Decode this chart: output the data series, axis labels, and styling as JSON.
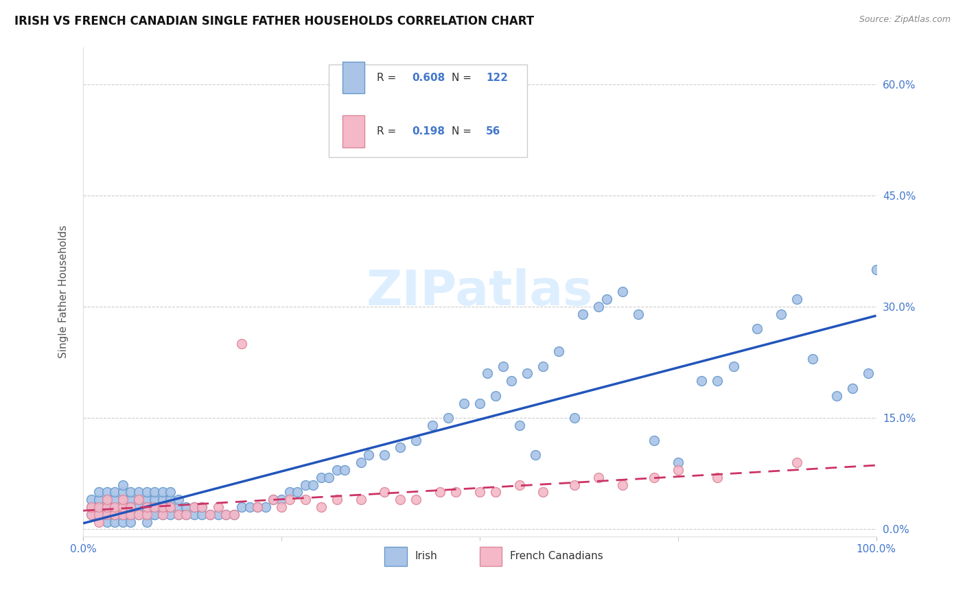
{
  "title": "IRISH VS FRENCH CANADIAN SINGLE FATHER HOUSEHOLDS CORRELATION CHART",
  "source": "Source: ZipAtlas.com",
  "ylabel": "Single Father Households",
  "xlim": [
    0,
    100
  ],
  "ylim": [
    -1,
    65
  ],
  "ytick_vals": [
    0,
    15,
    30,
    45,
    60
  ],
  "ytick_labels": [
    "0.0%",
    "15.0%",
    "30.0%",
    "45.0%",
    "60.0%"
  ],
  "grid_color": "#cccccc",
  "irish_color": "#aac4e8",
  "irish_edge_color": "#6699cc",
  "french_color": "#f4b8c8",
  "french_edge_color": "#dd8899",
  "irish_line_color": "#2255bb",
  "french_line_color": "#cc3366",
  "legend_text_color": "#4477cc",
  "background_color": "#ffffff",
  "watermark": "ZIPatlas",
  "watermark_color": "#ddeeff",
  "irish_R": 0.608,
  "irish_N": 122,
  "french_R": 0.198,
  "french_N": 56,
  "irish_x": [
    1,
    1,
    1,
    2,
    2,
    2,
    2,
    2,
    3,
    3,
    3,
    3,
    3,
    3,
    4,
    4,
    4,
    4,
    4,
    4,
    5,
    5,
    5,
    5,
    5,
    5,
    5,
    6,
    6,
    6,
    6,
    6,
    6,
    7,
    7,
    7,
    7,
    7,
    8,
    8,
    8,
    8,
    8,
    8,
    9,
    9,
    9,
    9,
    9,
    10,
    10,
    10,
    10,
    10,
    11,
    11,
    11,
    11,
    12,
    12,
    12,
    13,
    13,
    14,
    14,
    15,
    15,
    16,
    17,
    18,
    19,
    20,
    21,
    22,
    23,
    24,
    25,
    26,
    27,
    28,
    29,
    30,
    31,
    32,
    33,
    35,
    36,
    38,
    40,
    42,
    44,
    46,
    48,
    50,
    52,
    54,
    56,
    58,
    60,
    63,
    65,
    66,
    68,
    70,
    72,
    75,
    78,
    80,
    82,
    85,
    88,
    90,
    92,
    95,
    97,
    99,
    100,
    51,
    53,
    55,
    57,
    62
  ],
  "irish_y": [
    2,
    3,
    4,
    2,
    3,
    4,
    5,
    2,
    1,
    2,
    3,
    4,
    5,
    3,
    1,
    2,
    3,
    4,
    5,
    2,
    1,
    2,
    3,
    4,
    5,
    6,
    2,
    1,
    2,
    3,
    4,
    5,
    3,
    2,
    3,
    4,
    5,
    2,
    1,
    2,
    3,
    4,
    5,
    3,
    2,
    3,
    4,
    5,
    2,
    2,
    3,
    4,
    5,
    3,
    2,
    3,
    4,
    5,
    2,
    3,
    4,
    2,
    3,
    2,
    3,
    2,
    3,
    2,
    2,
    2,
    2,
    3,
    3,
    3,
    3,
    4,
    4,
    5,
    5,
    6,
    6,
    7,
    7,
    8,
    8,
    9,
    10,
    10,
    11,
    12,
    14,
    15,
    17,
    17,
    18,
    20,
    21,
    22,
    24,
    29,
    30,
    31,
    32,
    29,
    12,
    9,
    20,
    20,
    22,
    27,
    29,
    31,
    23,
    18,
    19,
    21,
    35,
    21,
    22,
    14,
    10,
    15
  ],
  "french_x": [
    1,
    1,
    2,
    2,
    2,
    3,
    3,
    3,
    4,
    4,
    5,
    5,
    5,
    6,
    6,
    7,
    7,
    8,
    8,
    9,
    10,
    10,
    11,
    12,
    13,
    14,
    15,
    16,
    17,
    18,
    19,
    20,
    22,
    24,
    25,
    26,
    28,
    30,
    32,
    35,
    38,
    40,
    42,
    45,
    47,
    50,
    52,
    55,
    58,
    62,
    65,
    68,
    72,
    75,
    80,
    90
  ],
  "french_y": [
    2,
    3,
    1,
    2,
    3,
    2,
    3,
    4,
    2,
    3,
    2,
    3,
    4,
    2,
    3,
    2,
    4,
    2,
    3,
    3,
    2,
    3,
    3,
    2,
    2,
    3,
    3,
    2,
    3,
    2,
    2,
    25,
    3,
    4,
    3,
    4,
    4,
    3,
    4,
    4,
    5,
    4,
    4,
    5,
    5,
    5,
    5,
    6,
    5,
    6,
    7,
    6,
    7,
    8,
    7,
    9
  ]
}
